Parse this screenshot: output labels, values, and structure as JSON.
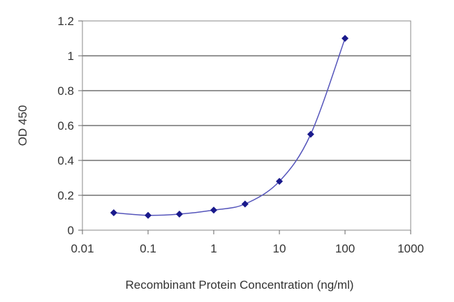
{
  "chart_data": {
    "type": "line",
    "title": "",
    "xlabel": "Recombinant Protein Concentration (ng/ml)",
    "ylabel": "OD 450",
    "x_scale": "log",
    "xlim": [
      0.01,
      1000
    ],
    "ylim": [
      0,
      1.2
    ],
    "x_ticks": [
      0.01,
      0.1,
      1,
      10,
      100,
      1000
    ],
    "x_tick_labels": [
      "0.01",
      "0.1",
      "1",
      "10",
      "100",
      "1000"
    ],
    "y_ticks": [
      0,
      0.2,
      0.4,
      0.6,
      0.8,
      1,
      1.2
    ],
    "y_tick_labels": [
      "0",
      "0.2",
      "0.4",
      "0.6",
      "0.8",
      "1",
      "1.2"
    ],
    "grid": "horizontal",
    "legend": "none",
    "series": [
      {
        "x": [
          0.03,
          0.1,
          0.3,
          1,
          3,
          10,
          30,
          100
        ],
        "y": [
          0.1,
          0.085,
          0.092,
          0.115,
          0.15,
          0.28,
          0.55,
          1.1
        ],
        "color": "#1a1a8c"
      }
    ]
  }
}
